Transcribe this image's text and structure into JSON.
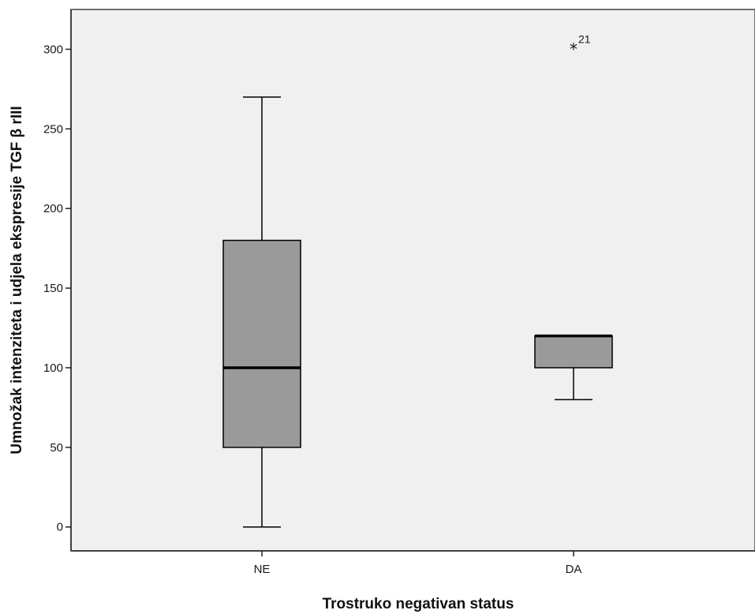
{
  "chart_data": {
    "type": "boxplot",
    "xlabel": "Trostruko negativan status",
    "ylabel": "Umnožak intenziteta i udjela ekspresije TGF β rIII",
    "ylim": [
      -15,
      325
    ],
    "yticks": [
      0,
      50,
      100,
      150,
      200,
      250,
      300
    ],
    "categories": [
      "NE",
      "DA"
    ],
    "boxes": [
      {
        "category": "NE",
        "whisker_low": 0,
        "q1": 50,
        "median": 100,
        "q3": 180,
        "whisker_high": 270,
        "outliers": []
      },
      {
        "category": "DA",
        "whisker_low": 80,
        "q1": 100,
        "median": 120,
        "q3": 120,
        "whisker_high": 120,
        "outliers": [
          {
            "value": 300,
            "label": "21",
            "marker": "star"
          }
        ]
      }
    ],
    "colors": {
      "plot_background": "#f0f0f0",
      "box_fill": "#9a9a9a",
      "line": "#000000"
    },
    "grid": false,
    "legend": false
  }
}
